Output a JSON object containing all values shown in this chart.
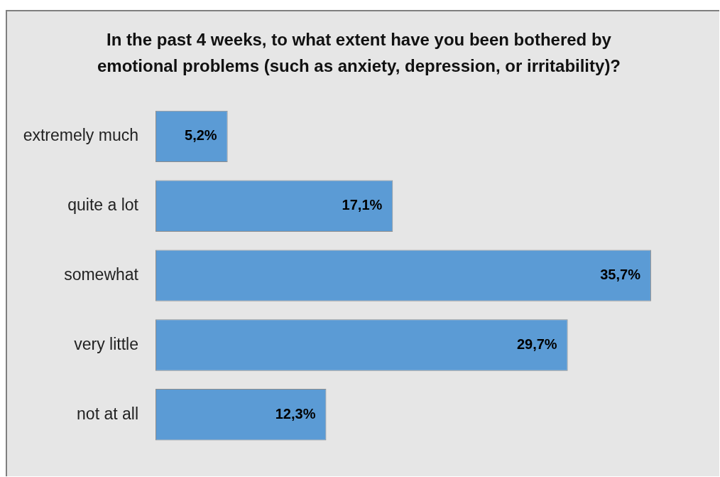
{
  "chart_data": {
    "type": "bar",
    "orientation": "horizontal",
    "title": "In the past 4 weeks, to what extent have you been bothered by emotional problems (such as anxiety, depression, or irritability)?",
    "categories": [
      "extremely much",
      "quite a lot",
      "somewhat",
      "very little",
      "not at all"
    ],
    "values": [
      5.2,
      17.1,
      35.7,
      29.7,
      12.3
    ],
    "value_labels": [
      "5,2%",
      "17,1%",
      "35,7%",
      "29,7%",
      "12,3%"
    ],
    "color": "#5b9bd5"
  }
}
